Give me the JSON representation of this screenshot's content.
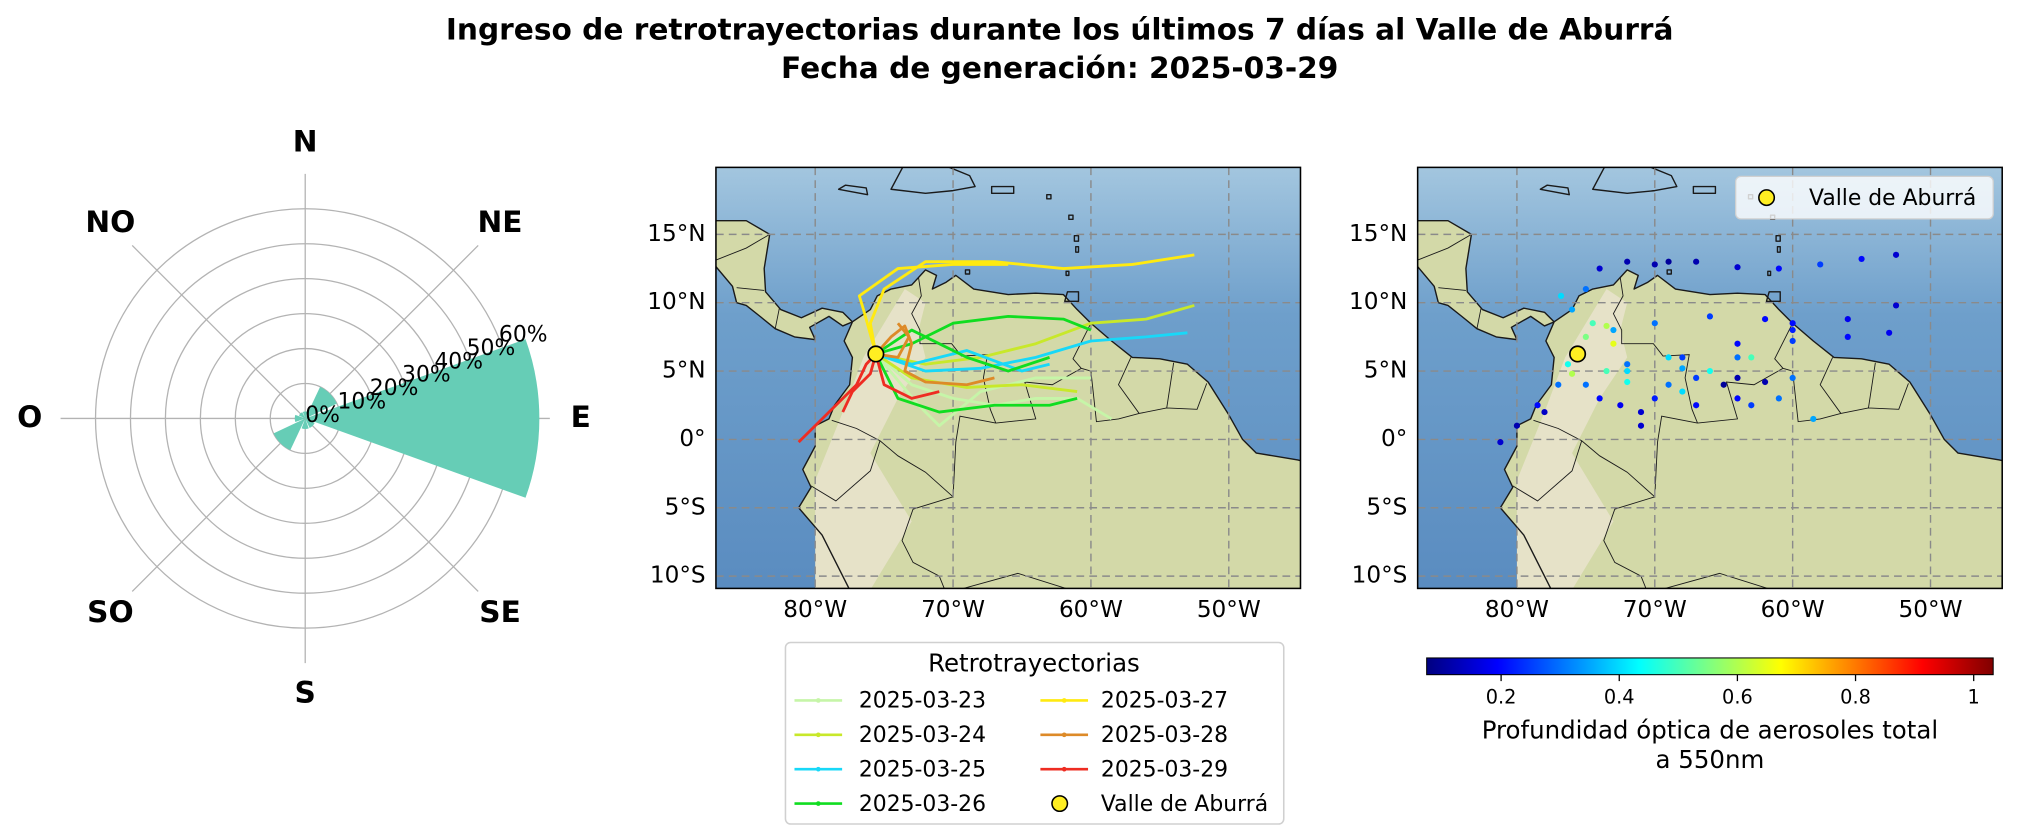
{
  "title": "Ingreso de retrotrayectorias durante los últimos 7 días al Valle de Aburrá",
  "subtitle": "Fecha de generación: 2025-03-29",
  "chart_data": [
    {
      "type": "polar_bar",
      "categories": [
        "N",
        "NE",
        "E",
        "SE",
        "S",
        "SO",
        "O",
        "NO"
      ],
      "values": [
        2,
        10,
        67,
        3,
        3,
        10,
        3,
        2
      ],
      "color": "#66cdb6",
      "rlim": [
        0,
        70
      ],
      "rticks": [
        {
          "value": 0,
          "label": "0%"
        },
        {
          "value": 10,
          "label": "10%"
        },
        {
          "value": 20,
          "label": "20%"
        },
        {
          "value": 30,
          "label": "30%"
        },
        {
          "value": 40,
          "label": "40%"
        },
        {
          "value": 50,
          "label": "50%"
        },
        {
          "value": 60,
          "label": "60%"
        }
      ],
      "grid": true
    },
    {
      "type": "trajectory",
      "xlim": [
        -87.2,
        -44.8
      ],
      "ylim": [
        -10.9,
        19.9
      ],
      "xticks": [
        {
          "value": -80,
          "label": "80°W"
        },
        {
          "value": -70,
          "label": "70°W"
        },
        {
          "value": -60,
          "label": "60°W"
        },
        {
          "value": -50,
          "label": "50°W"
        }
      ],
      "yticks": [
        {
          "value": 15,
          "label": "15°N"
        },
        {
          "value": 10,
          "label": "10°N"
        },
        {
          "value": 5,
          "label": "5°N"
        },
        {
          "value": 0,
          "label": "0°"
        },
        {
          "value": -5,
          "label": "5°S"
        },
        {
          "value": -10,
          "label": "10°S"
        }
      ],
      "grid": true,
      "legend_title": "Retrotrayectorias",
      "series": [
        {
          "name": "2025-03-23",
          "color": "#c6f5a8",
          "trajectories": [
            {
              "x": [
                -75.6,
                -73,
                -70,
                -67,
                -64,
                -61,
                -58.5
              ],
              "values": [
                6.25,
                4,
                3,
                2.5,
                3,
                3,
                1.5
              ]
            },
            {
              "x": [
                -75.6,
                -72.5,
                -71,
                -68,
                -64,
                -60
              ],
              "values": [
                6.25,
                2.5,
                1,
                3.5,
                4.5,
                4.5
              ]
            }
          ]
        },
        {
          "name": "2025-03-24",
          "color": "#c8e82a",
          "trajectories": [
            {
              "x": [
                -75.6,
                -72,
                -68,
                -64,
                -60,
                -56,
                -52.5
              ],
              "values": [
                6.25,
                5.5,
                6,
                7,
                8.5,
                8.8,
                9.8
              ]
            },
            {
              "x": [
                -75.6,
                -73,
                -69,
                -65,
                -61
              ],
              "values": [
                6.25,
                4.5,
                3.8,
                4,
                3.5
              ]
            }
          ]
        },
        {
          "name": "2025-03-25",
          "color": "#18d8f8",
          "trajectories": [
            {
              "x": [
                -75.6,
                -72,
                -68,
                -64,
                -60,
                -56,
                -53
              ],
              "values": [
                6.25,
                5,
                5.2,
                6,
                7.2,
                7.5,
                7.8
              ]
            },
            {
              "x": [
                -75.6,
                -73,
                -69,
                -65,
                -63
              ],
              "values": [
                6.25,
                5.5,
                6.5,
                5,
                5.5
              ]
            }
          ]
        },
        {
          "name": "2025-03-26",
          "color": "#10dd20",
          "trajectories": [
            {
              "x": [
                -75.6,
                -73,
                -70,
                -66,
                -62,
                -60
              ],
              "values": [
                6.25,
                7,
                8.5,
                9,
                8.8,
                8
              ]
            },
            {
              "x": [
                -75.6,
                -74,
                -71,
                -67,
                -63,
                -61
              ],
              "values": [
                6.25,
                3,
                2,
                2.5,
                2.5,
                3
              ]
            },
            {
              "x": [
                -75.6,
                -73,
                -69,
                -66,
                -63
              ],
              "values": [
                6.25,
                8,
                6,
                5,
                6
              ]
            }
          ]
        },
        {
          "name": "2025-03-27",
          "color": "#ffea10",
          "trajectories": [
            {
              "x": [
                -75.6,
                -76,
                -75,
                -72,
                -67,
                -62,
                -57,
                -52.5
              ],
              "values": [
                6.25,
                8.5,
                11,
                13,
                13,
                12.5,
                12.8,
                13.5
              ]
            },
            {
              "x": [
                -75.6,
                -76.5,
                -76.8,
                -74,
                -70,
                -66
              ],
              "values": [
                6.25,
                9.5,
                10.5,
                12.5,
                12.8,
                12.8
              ]
            }
          ]
        },
        {
          "name": "2025-03-28",
          "color": "#dd8a28",
          "trajectories": [
            {
              "x": [
                -75.6,
                -74.5,
                -73.5,
                -73,
                -73.5,
                -72,
                -69,
                -67
              ],
              "values": [
                6.25,
                7.5,
                8.3,
                7,
                5,
                4.2,
                4,
                4.5
              ]
            },
            {
              "x": [
                -75.6,
                -74,
                -73.2,
                -74
              ],
              "values": [
                6.25,
                6,
                7.5,
                8.5
              ]
            }
          ]
        },
        {
          "name": "2025-03-29",
          "color": "#ee2c22",
          "trajectories": [
            {
              "x": [
                -75.6,
                -76.3,
                -77,
                -78.5,
                -80,
                -81.2
              ],
              "values": [
                6.25,
                5.5,
                4,
                2.5,
                1,
                -0.2
              ]
            },
            {
              "x": [
                -75.6,
                -76,
                -77.3,
                -78
              ],
              "values": [
                6.25,
                4.8,
                3.5,
                2
              ]
            },
            {
              "x": [
                -75.6,
                -75,
                -73,
                -71
              ],
              "values": [
                6.25,
                4,
                3,
                3.5
              ]
            }
          ]
        }
      ],
      "point": {
        "name": "Valle de Aburrá",
        "x": -75.6,
        "y": 6.25,
        "color": "#ffee22"
      }
    },
    {
      "type": "scatter",
      "xlim": [
        -87.2,
        -44.8
      ],
      "ylim": [
        -10.9,
        19.9
      ],
      "xticks": [
        {
          "value": -80,
          "label": "80°W"
        },
        {
          "value": -70,
          "label": "70°W"
        },
        {
          "value": -60,
          "label": "60°W"
        },
        {
          "value": -50,
          "label": "50°W"
        }
      ],
      "yticks": [
        {
          "value": 15,
          "label": "15°N"
        },
        {
          "value": 10,
          "label": "10°N"
        },
        {
          "value": 5,
          "label": "5°N"
        },
        {
          "value": 0,
          "label": "0°"
        },
        {
          "value": -5,
          "label": "5°S"
        },
        {
          "value": -10,
          "label": "10°S"
        }
      ],
      "grid": true,
      "x": [
        -81.2,
        -80,
        -78.5,
        -77,
        -76.3,
        -75,
        -74.5,
        -76,
        -75,
        -72,
        -69,
        -67,
        -64,
        -61,
        -58,
        -55,
        -52.5,
        -76.8,
        -74,
        -70,
        -73.5,
        -73,
        -73.5,
        -72,
        -69,
        -67,
        -74,
        -71,
        -67,
        -63,
        -61,
        -73,
        -70,
        -66,
        -62,
        -60,
        -69,
        -66,
        -63,
        -72,
        -68,
        -64,
        -60,
        -56,
        -53,
        -72,
        -68,
        -64,
        -60,
        -56,
        -52.5,
        -70,
        -64,
        -58.5,
        -72.5,
        -71,
        -68,
        -64,
        -60,
        -65,
        -62,
        -78,
        -75,
        -76
      ],
      "y": [
        -0.2,
        1,
        2.5,
        4,
        5.5,
        7.5,
        8.5,
        9.5,
        11,
        13,
        13,
        13,
        12.6,
        12.5,
        12.8,
        13.2,
        13.5,
        10.5,
        12.5,
        12.8,
        8.3,
        7,
        5,
        4.2,
        4,
        4.5,
        3,
        2,
        2.5,
        2.5,
        3,
        8,
        8.5,
        9,
        8.8,
        8,
        6,
        5,
        6,
        5,
        5.2,
        6,
        7.2,
        7.5,
        7.8,
        5.5,
        6,
        7,
        8.5,
        8.8,
        9.8,
        3,
        3,
        1.5,
        2.5,
        1,
        3.5,
        4.5,
        4.5,
        4,
        4.2,
        2,
        4,
        4.8
      ],
      "values": [
        0.15,
        0.12,
        0.2,
        0.3,
        0.45,
        0.55,
        0.5,
        0.35,
        0.3,
        0.12,
        0.1,
        0.12,
        0.15,
        0.2,
        0.25,
        0.2,
        0.15,
        0.4,
        0.15,
        0.12,
        0.6,
        0.65,
        0.5,
        0.45,
        0.3,
        0.25,
        0.2,
        0.15,
        0.2,
        0.25,
        0.3,
        0.35,
        0.3,
        0.25,
        0.2,
        0.22,
        0.4,
        0.45,
        0.5,
        0.4,
        0.35,
        0.3,
        0.25,
        0.2,
        0.18,
        0.3,
        0.25,
        0.2,
        0.2,
        0.18,
        0.15,
        0.22,
        0.2,
        0.35,
        0.18,
        0.15,
        0.4,
        0.12,
        0.3,
        0.1,
        0.12,
        0.14,
        0.3,
        0.6
      ],
      "colormap": "jet",
      "clim": [
        0.074,
        1.033
      ],
      "cticks": [
        0.2,
        0.4,
        0.6,
        0.8,
        1.0
      ],
      "colorbar_label": [
        "Profundidad óptica de aerosoles total",
        "a 550nm"
      ],
      "point": {
        "name": "Valle de Aburrá",
        "x": -75.6,
        "y": 6.25,
        "color": "#ffee22"
      },
      "legend": "upper right"
    }
  ]
}
